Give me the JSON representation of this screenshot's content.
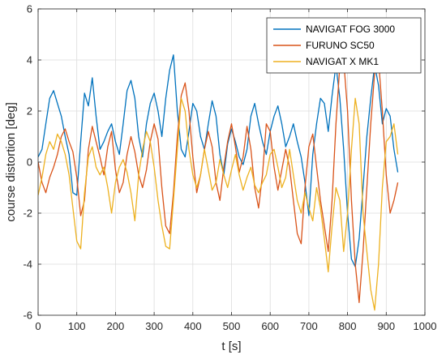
{
  "chart_data": {
    "type": "line",
    "xlabel": "t [s]",
    "ylabel": "course distortion [deg]",
    "xlim": [
      0,
      1000
    ],
    "ylim": [
      -6,
      6
    ],
    "xticks": [
      0,
      100,
      200,
      300,
      400,
      500,
      600,
      700,
      800,
      900,
      1000
    ],
    "yticks": [
      -6,
      -4,
      -2,
      0,
      2,
      4,
      6
    ],
    "grid": true,
    "legend_position": "top-right",
    "series": [
      {
        "name": "NAVIGAT FOG 3000",
        "color": "#0072BD",
        "x": [
          0,
          10,
          20,
          30,
          40,
          50,
          60,
          70,
          80,
          90,
          100,
          110,
          120,
          130,
          140,
          150,
          160,
          170,
          180,
          190,
          200,
          210,
          220,
          230,
          240,
          250,
          260,
          270,
          280,
          290,
          300,
          310,
          320,
          330,
          340,
          350,
          360,
          370,
          380,
          390,
          400,
          410,
          420,
          430,
          440,
          450,
          460,
          470,
          480,
          490,
          500,
          510,
          520,
          530,
          540,
          550,
          560,
          570,
          580,
          590,
          600,
          610,
          620,
          630,
          640,
          650,
          660,
          670,
          680,
          690,
          700,
          710,
          720,
          730,
          740,
          750,
          760,
          770,
          780,
          790,
          800,
          810,
          820,
          830,
          840,
          850,
          860,
          870,
          880,
          890,
          900,
          910,
          920,
          930
        ],
        "y": [
          0.2,
          0.5,
          1.5,
          2.5,
          2.8,
          2.3,
          1.8,
          1.0,
          0.3,
          -1.2,
          -1.3,
          0.8,
          2.7,
          2.2,
          3.3,
          1.8,
          0.5,
          0.8,
          1.2,
          1.5,
          0.8,
          0.3,
          1.5,
          2.8,
          3.2,
          2.5,
          1.0,
          0.2,
          1.5,
          2.3,
          2.7,
          2.0,
          1.0,
          2.5,
          3.6,
          4.2,
          2.0,
          0.5,
          0.2,
          1.2,
          2.3,
          2.0,
          1.0,
          0.5,
          1.5,
          2.4,
          1.8,
          0.3,
          -0.5,
          0.7,
          1.3,
          0.8,
          0.2,
          -0.1,
          0.5,
          1.8,
          2.3,
          1.5,
          0.8,
          0.3,
          1.2,
          1.8,
          2.2,
          1.5,
          0.6,
          1.0,
          1.5,
          0.8,
          0.2,
          -0.8,
          -2.1,
          0.3,
          1.5,
          2.5,
          2.3,
          1.2,
          2.6,
          3.8,
          2.5,
          0.5,
          -2.0,
          -3.8,
          -4.1,
          -3.0,
          -1.0,
          1.0,
          2.5,
          3.8,
          3.0,
          1.5,
          2.1,
          1.8,
          0.5,
          -0.4
        ]
      },
      {
        "name": "FURUNO SC50",
        "color": "#D95319",
        "x": [
          0,
          10,
          20,
          30,
          40,
          50,
          60,
          70,
          80,
          90,
          100,
          110,
          120,
          130,
          140,
          150,
          160,
          170,
          180,
          190,
          200,
          210,
          220,
          230,
          240,
          250,
          260,
          270,
          280,
          290,
          300,
          310,
          320,
          330,
          340,
          350,
          360,
          370,
          380,
          390,
          400,
          410,
          420,
          430,
          440,
          450,
          460,
          470,
          480,
          490,
          500,
          510,
          520,
          530,
          540,
          550,
          560,
          570,
          580,
          590,
          600,
          610,
          620,
          630,
          640,
          650,
          660,
          670,
          680,
          690,
          700,
          710,
          720,
          730,
          740,
          750,
          760,
          770,
          780,
          790,
          800,
          810,
          820,
          830,
          840,
          850,
          860,
          870,
          880,
          890,
          900,
          910,
          920,
          930
        ],
        "y": [
          0.0,
          -0.8,
          -1.2,
          -0.6,
          -0.2,
          0.3,
          1.0,
          1.3,
          0.8,
          0.4,
          -0.6,
          -2.1,
          -1.5,
          0.5,
          1.4,
          0.8,
          0.2,
          -0.5,
          0.6,
          1.2,
          -0.3,
          -1.2,
          -0.8,
          0.3,
          1.0,
          0.4,
          -0.5,
          -1.0,
          -0.3,
          0.8,
          1.5,
          0.9,
          -1.0,
          -2.5,
          -2.8,
          -1.2,
          1.0,
          2.6,
          3.1,
          2.0,
          0.2,
          -1.2,
          -0.5,
          0.5,
          1.2,
          0.6,
          -0.8,
          -1.5,
          -0.2,
          0.8,
          1.5,
          0.6,
          -0.4,
          0.2,
          1.4,
          0.5,
          -1.0,
          -1.8,
          -0.5,
          1.5,
          1.2,
          -0.2,
          -1.1,
          -0.3,
          0.5,
          -0.2,
          -1.5,
          -2.8,
          -3.2,
          -1.0,
          0.6,
          1.1,
          -0.2,
          -1.5,
          -2.5,
          -3.5,
          -1.5,
          1.5,
          3.8,
          4.0,
          2.0,
          -1.5,
          -4.0,
          -5.5,
          -3.5,
          -1.0,
          1.5,
          3.5,
          4.0,
          2.0,
          -0.5,
          -2.0,
          -1.5,
          -0.8
        ]
      },
      {
        "name": "NAVIGAT X MK1",
        "color": "#EDB120",
        "x": [
          0,
          10,
          20,
          30,
          40,
          50,
          60,
          70,
          80,
          90,
          100,
          110,
          120,
          130,
          140,
          150,
          160,
          170,
          180,
          190,
          200,
          210,
          220,
          230,
          240,
          250,
          260,
          270,
          280,
          290,
          300,
          310,
          320,
          330,
          340,
          350,
          360,
          370,
          380,
          390,
          400,
          410,
          420,
          430,
          440,
          450,
          460,
          470,
          480,
          490,
          500,
          510,
          520,
          530,
          540,
          550,
          560,
          570,
          580,
          590,
          600,
          610,
          620,
          630,
          640,
          650,
          660,
          670,
          680,
          690,
          700,
          710,
          720,
          730,
          740,
          750,
          760,
          770,
          780,
          790,
          800,
          810,
          820,
          830,
          840,
          850,
          860,
          870,
          880,
          890,
          900,
          910,
          920,
          930
        ],
        "y": [
          -1.3,
          -0.6,
          0.3,
          0.8,
          0.5,
          1.1,
          0.8,
          0.3,
          -0.5,
          -1.8,
          -3.1,
          -3.4,
          -1.2,
          0.2,
          0.6,
          -0.2,
          -0.5,
          -0.2,
          -1.0,
          -2.0,
          -0.8,
          -0.2,
          0.1,
          -0.4,
          -1.2,
          -2.3,
          -0.5,
          0.5,
          1.2,
          0.8,
          -0.2,
          -1.5,
          -2.5,
          -3.3,
          -3.4,
          -1.5,
          0.5,
          2.5,
          2.0,
          0.5,
          -0.5,
          -1.0,
          -0.5,
          0.5,
          -0.3,
          -1.1,
          -0.8,
          0.1,
          -0.5,
          -1.0,
          -0.3,
          0.3,
          -0.5,
          -1.1,
          -0.6,
          -0.2,
          -0.9,
          -1.2,
          -0.8,
          -0.5,
          0.3,
          0.5,
          -0.2,
          -1.0,
          -0.6,
          0.5,
          -0.5,
          -1.5,
          -2.0,
          -1.2,
          -1.8,
          -2.3,
          -1.0,
          -1.8,
          -3.0,
          -4.3,
          -2.5,
          -1.0,
          -1.5,
          -3.5,
          -2.0,
          0.5,
          2.5,
          1.5,
          -2.0,
          -3.5,
          -5.0,
          -5.8,
          -4.0,
          -1.0,
          0.8,
          1.0,
          1.5,
          0.3
        ]
      }
    ]
  }
}
